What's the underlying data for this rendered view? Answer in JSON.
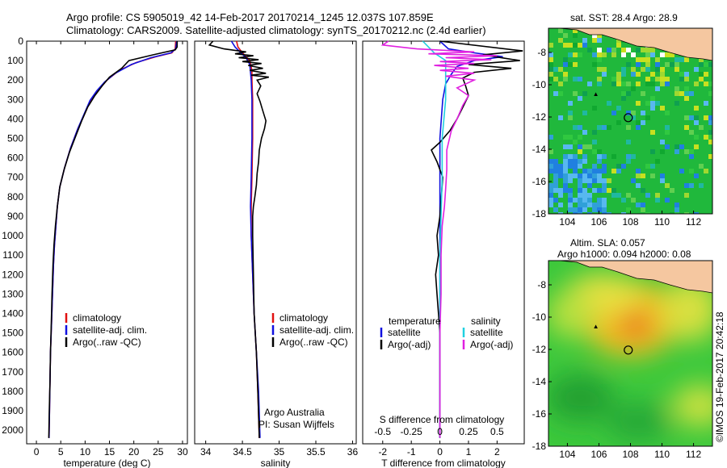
{
  "header": {
    "line1": "Argo profile: CS 5905019_42 14-Feb-2017 20170214_1245 12.037S 107.859E",
    "line2": "Climatology: CARS2009. Satellite-adjusted climatology: synTS_20170212.nc (2.4d earlier)"
  },
  "depth_axis": {
    "ylim": [
      0,
      2070
    ],
    "ticks": [
      0,
      100,
      200,
      300,
      400,
      500,
      600,
      700,
      800,
      900,
      1000,
      1100,
      1200,
      1300,
      1400,
      1500,
      1600,
      1700,
      1800,
      1900,
      2000
    ]
  },
  "colors": {
    "climatology": "#e01010",
    "satellite": "#1010e0",
    "argo": "#000000",
    "sal_sat": "#20d0e0",
    "sal_argo": "#e020e0"
  },
  "chart_data": [
    {
      "type": "line",
      "xlabel": "temperature (deg C)",
      "xlim": [
        -2,
        31
      ],
      "xticks": [
        0,
        5,
        10,
        15,
        20,
        25,
        30
      ],
      "legend": [
        "climatology",
        "satellite-adj. clim.",
        "Argo(..raw -QC)"
      ],
      "legend_position": "lower-center",
      "series": [
        {
          "name": "climatology",
          "color": "#e01010",
          "points": [
            [
              28.6,
              0
            ],
            [
              28.5,
              40
            ],
            [
              27.8,
              60
            ],
            [
              24.5,
              80
            ],
            [
              20.5,
              110
            ],
            [
              17,
              150
            ],
            [
              14.5,
              200
            ],
            [
              12.8,
              250
            ],
            [
              11.2,
              300
            ],
            [
              9.8,
              380
            ],
            [
              8.5,
              450
            ],
            [
              7,
              550
            ],
            [
              5.8,
              650
            ],
            [
              4.8,
              750
            ],
            [
              4.3,
              850
            ],
            [
              4,
              950
            ],
            [
              3.7,
              1050
            ],
            [
              3.5,
              1150
            ],
            [
              3.3,
              1300
            ],
            [
              3.1,
              1450
            ],
            [
              2.9,
              1600
            ],
            [
              2.8,
              1750
            ],
            [
              2.7,
              1900
            ],
            [
              2.6,
              2040
            ]
          ]
        },
        {
          "name": "satellite-adj. clim.",
          "color": "#1010e0",
          "points": [
            [
              28.8,
              0
            ],
            [
              28.6,
              40
            ],
            [
              27.6,
              60
            ],
            [
              23.5,
              85
            ],
            [
              19.5,
              120
            ],
            [
              16.2,
              165
            ],
            [
              14,
              210
            ],
            [
              12.4,
              255
            ],
            [
              11,
              305
            ],
            [
              9.7,
              380
            ],
            [
              8.5,
              450
            ],
            [
              7,
              550
            ],
            [
              5.8,
              650
            ],
            [
              4.8,
              750
            ],
            [
              4.3,
              850
            ],
            [
              4,
              950
            ],
            [
              3.7,
              1050
            ],
            [
              3.5,
              1150
            ],
            [
              3.3,
              1300
            ],
            [
              3.1,
              1450
            ],
            [
              2.9,
              1600
            ],
            [
              2.8,
              1750
            ],
            [
              2.7,
              1900
            ],
            [
              2.6,
              2040
            ]
          ]
        },
        {
          "name": "Argo(..raw -QC)",
          "color": "#000000",
          "points": [
            [
              28.9,
              0
            ],
            [
              28.9,
              30
            ],
            [
              28.5,
              45
            ],
            [
              24,
              70
            ],
            [
              19,
              100
            ],
            [
              17.5,
              140
            ],
            [
              15,
              185
            ],
            [
              13.5,
              230
            ],
            [
              12,
              280
            ],
            [
              10.5,
              340
            ],
            [
              9.3,
              410
            ],
            [
              8.2,
              480
            ],
            [
              6.8,
              570
            ],
            [
              5.7,
              660
            ],
            [
              4.8,
              750
            ],
            [
              4.3,
              850
            ],
            [
              3.9,
              950
            ],
            [
              3.6,
              1050
            ],
            [
              3.4,
              1150
            ],
            [
              3.2,
              1300
            ],
            [
              3.05,
              1450
            ],
            [
              2.9,
              1600
            ],
            [
              2.8,
              1750
            ],
            [
              2.65,
              1900
            ],
            [
              2.55,
              2040
            ]
          ]
        }
      ]
    },
    {
      "type": "line",
      "xlabel": "salinity",
      "xlim": [
        33.85,
        36.05
      ],
      "xticks": [
        34,
        34.5,
        35,
        35.5,
        36
      ],
      "legend": [
        "climatology",
        "satellite-adj. clim.",
        "Argo(..raw -QC)"
      ],
      "legend_position": "lower-center",
      "annotation": [
        "Argo Australia",
        "PI: Susan Wijffels"
      ],
      "series": [
        {
          "name": "climatology",
          "color": "#e01010",
          "points": [
            [
              34.42,
              0
            ],
            [
              34.44,
              30
            ],
            [
              34.5,
              60
            ],
            [
              34.55,
              80
            ],
            [
              34.6,
              100
            ],
            [
              34.63,
              150
            ],
            [
              34.63,
              200
            ],
            [
              34.64,
              300
            ],
            [
              34.64,
              500
            ],
            [
              34.63,
              700
            ],
            [
              34.62,
              850
            ],
            [
              34.62,
              1000
            ],
            [
              34.64,
              1200
            ],
            [
              34.66,
              1400
            ],
            [
              34.69,
              1600
            ],
            [
              34.71,
              1800
            ],
            [
              34.73,
              2040
            ]
          ]
        },
        {
          "name": "satellite-adj. clim.",
          "color": "#1010e0",
          "points": [
            [
              34.35,
              0
            ],
            [
              34.4,
              30
            ],
            [
              34.48,
              60
            ],
            [
              34.55,
              85
            ],
            [
              34.6,
              120
            ],
            [
              34.62,
              200
            ],
            [
              34.63,
              300
            ],
            [
              34.63,
              500
            ],
            [
              34.62,
              700
            ],
            [
              34.61,
              850
            ],
            [
              34.62,
              1000
            ],
            [
              34.64,
              1200
            ],
            [
              34.66,
              1400
            ],
            [
              34.69,
              1600
            ],
            [
              34.72,
              1800
            ],
            [
              34.74,
              2040
            ]
          ]
        },
        {
          "name": "Argo(..raw -QC)",
          "color": "#000000",
          "points": [
            [
              34.1,
              0
            ],
            [
              34.05,
              20
            ],
            [
              34.25,
              40
            ],
            [
              34.55,
              55
            ],
            [
              34.4,
              65
            ],
            [
              34.65,
              75
            ],
            [
              34.45,
              85
            ],
            [
              34.72,
              95
            ],
            [
              34.5,
              105
            ],
            [
              34.76,
              115
            ],
            [
              34.58,
              125
            ],
            [
              34.78,
              140
            ],
            [
              34.6,
              150
            ],
            [
              34.82,
              165
            ],
            [
              34.62,
              175
            ],
            [
              34.86,
              185
            ],
            [
              34.7,
              200
            ],
            [
              34.75,
              230
            ],
            [
              34.7,
              270
            ],
            [
              34.74,
              310
            ],
            [
              34.78,
              360
            ],
            [
              34.82,
              410
            ],
            [
              34.8,
              450
            ],
            [
              34.76,
              500
            ],
            [
              34.73,
              560
            ],
            [
              34.72,
              620
            ],
            [
              34.7,
              680
            ],
            [
              34.69,
              740
            ],
            [
              34.67,
              800
            ],
            [
              34.65,
              850
            ],
            [
              34.64,
              900
            ],
            [
              34.64,
              1000
            ],
            [
              34.65,
              1200
            ],
            [
              34.66,
              1400
            ],
            [
              34.69,
              1600
            ],
            [
              34.71,
              1800
            ],
            [
              34.73,
              2040
            ]
          ]
        }
      ]
    },
    {
      "type": "line",
      "xlabel": "T difference from climatology",
      "x2label": "S difference from climatology",
      "xlim": [
        -2.7,
        2.95
      ],
      "xticks": [
        -2,
        -1,
        0,
        1,
        2
      ],
      "x2ticks": [
        "-0.5",
        "-0.25",
        "0",
        "0.25",
        "0.5"
      ],
      "legend_title_left": "temperature",
      "legend_title_right": "salinity",
      "legend": [
        "satellite",
        "Argo(-adj)",
        "satellite",
        "Argo(-adj)"
      ],
      "series": [
        {
          "name": "temperature satellite",
          "color": "#1010e0",
          "points": [
            [
              0,
              0
            ],
            [
              0.3,
              40
            ],
            [
              1.2,
              60
            ],
            [
              2.2,
              80
            ],
            [
              1.2,
              100
            ],
            [
              0.6,
              130
            ],
            [
              0.4,
              170
            ],
            [
              0.2,
              220
            ],
            [
              0.1,
              300
            ],
            [
              0,
              500
            ],
            [
              0,
              2040
            ]
          ]
        },
        {
          "name": "temperature Argo(-adj)",
          "color": "#000000",
          "points": [
            [
              0,
              0
            ],
            [
              2.9,
              50
            ],
            [
              1.5,
              70
            ],
            [
              2.8,
              100
            ],
            [
              1,
              120
            ],
            [
              2.5,
              140
            ],
            [
              1.2,
              160
            ],
            [
              0.8,
              190
            ],
            [
              0.9,
              230
            ],
            [
              1,
              280
            ],
            [
              0.8,
              340
            ],
            [
              0.6,
              400
            ],
            [
              0.35,
              460
            ],
            [
              0,
              520
            ],
            [
              -0.3,
              560
            ],
            [
              -0.1,
              620
            ],
            [
              0.1,
              700
            ],
            [
              0.05,
              800
            ],
            [
              0,
              900
            ],
            [
              -0.1,
              1000
            ],
            [
              -0.05,
              1100
            ],
            [
              -0.15,
              1200
            ],
            [
              -0.1,
              1300
            ],
            [
              -0.05,
              1400
            ],
            [
              0,
              1500
            ],
            [
              0,
              2040
            ]
          ]
        },
        {
          "name": "salinity satellite",
          "color": "#20d0e0",
          "points": [
            [
              -0.15,
              0
            ],
            [
              -0.1,
              30
            ],
            [
              -0.05,
              60
            ],
            [
              0.05,
              100
            ],
            [
              0.05,
              200
            ],
            [
              0.05,
              300
            ],
            [
              0.02,
              500
            ],
            [
              0.02,
              700
            ],
            [
              0.01,
              900
            ],
            [
              0,
              1100
            ],
            [
              0,
              2040
            ]
          ]
        },
        {
          "name": "salinity Argo(-adj)",
          "color": "#e020e0",
          "points": [
            [
              -0.45,
              0
            ],
            [
              -0.5,
              20
            ],
            [
              -0.2,
              40
            ],
            [
              0.3,
              55
            ],
            [
              -0.1,
              65
            ],
            [
              0.5,
              75
            ],
            [
              0.05,
              85
            ],
            [
              0.45,
              95
            ],
            [
              0.0,
              105
            ],
            [
              0.3,
              115
            ],
            [
              -0.05,
              125
            ],
            [
              0.25,
              140
            ],
            [
              0.0,
              150
            ],
            [
              0.3,
              165
            ],
            [
              0.05,
              180
            ],
            [
              0.3,
              200
            ],
            [
              0.15,
              240
            ],
            [
              0.25,
              280
            ],
            [
              0.2,
              330
            ],
            [
              0.15,
              400
            ],
            [
              0.1,
              460
            ],
            [
              0.06,
              560
            ],
            [
              0.06,
              660
            ],
            [
              0.05,
              760
            ],
            [
              0.04,
              850
            ],
            [
              0.02,
              950
            ],
            [
              0.01,
              1100
            ],
            [
              0.01,
              1300
            ],
            [
              0,
              1500
            ],
            [
              0,
              2040
            ]
          ]
        }
      ]
    },
    {
      "type": "heatmap",
      "title": "sat. SST: 28.4  Argo: 28.9",
      "xticks": [
        104,
        106,
        108,
        110,
        112
      ],
      "yticks": [
        -8,
        -10,
        -12,
        -14,
        -16,
        -18
      ],
      "xlim": [
        102.8,
        113.2
      ],
      "ylim": [
        -18,
        -6.5
      ],
      "marker": [
        107.86,
        -12.04
      ]
    },
    {
      "type": "heatmap",
      "title": "Altim. SLA: 0.057",
      "subtitle": "Argo h1000: 0.094 h2000: 0.08",
      "xticks": [
        104,
        106,
        108,
        110,
        112
      ],
      "yticks": [
        -8,
        -10,
        -12,
        -14,
        -16,
        -18
      ],
      "xlim": [
        102.8,
        113.2
      ],
      "ylim": [
        -18,
        -6.5
      ],
      "marker": [
        107.86,
        -12.04
      ]
    }
  ],
  "legend": {
    "labels": [
      "climatology",
      "satellite-adj. clim.",
      "Argo(..raw -QC)"
    ]
  },
  "diff_legend": {
    "temperature": "temperature",
    "salinity": "salinity",
    "satellite": "satellite",
    "argo": "Argo(-adj)"
  },
  "annotation": {
    "line1": "Argo Australia",
    "line2": "PI: Susan Wijffels"
  },
  "maps": {
    "sst_title": "sat. SST: 28.4  Argo: 28.9",
    "sla_title": "Altim. SLA: 0.057",
    "sla_subtitle": "Argo h1000: 0.094 h2000: 0.08"
  },
  "credit": "©IMOS 19-Feb-2017 20:42:18"
}
